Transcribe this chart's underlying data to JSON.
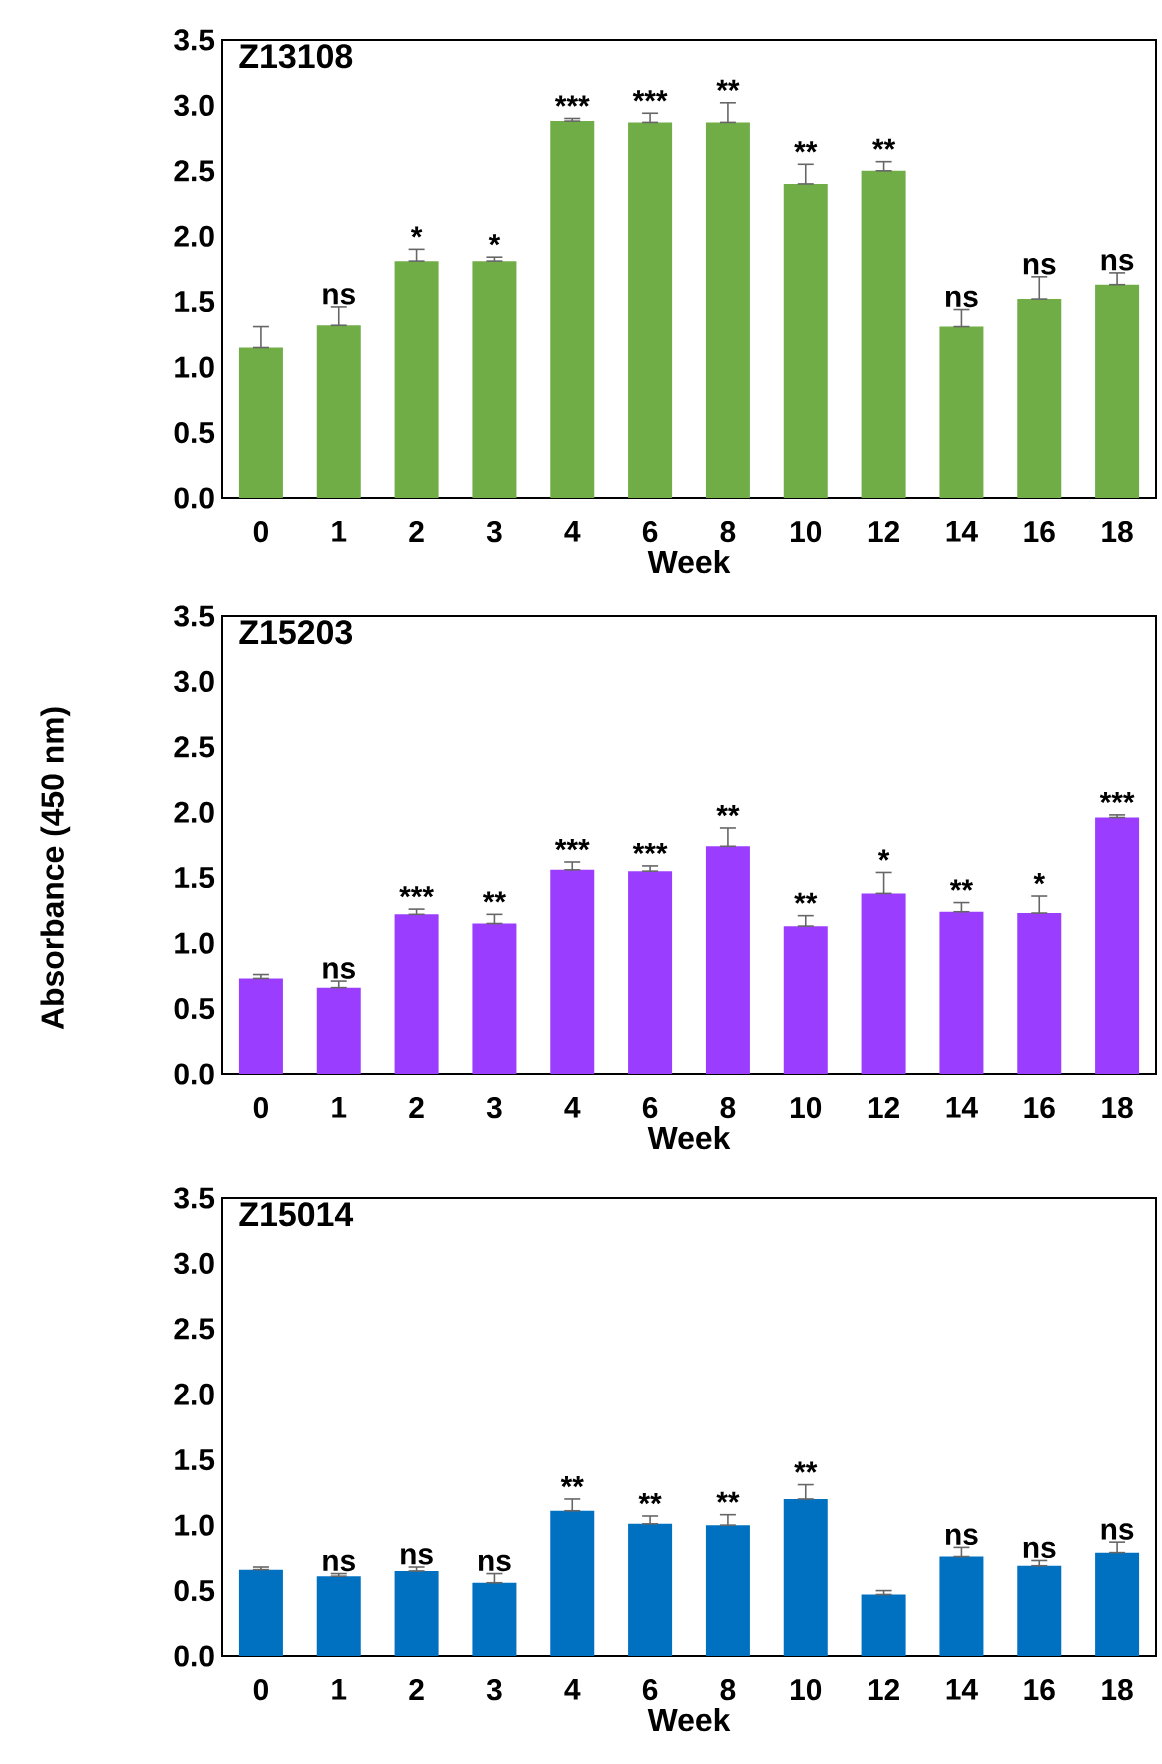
{
  "chart_data": [
    {
      "type": "bar",
      "title": "Z13108",
      "xlabel": "Week",
      "categories": [
        "0",
        "1",
        "2",
        "3",
        "4",
        "6",
        "8",
        "10",
        "12",
        "14",
        "16",
        "18"
      ],
      "color": "#70ad47",
      "values": [
        1.15,
        1.32,
        1.81,
        1.81,
        2.88,
        2.87,
        2.87,
        2.4,
        2.5,
        1.31,
        1.52,
        1.63
      ],
      "errors": [
        [
          1.15,
          1.31
        ],
        [
          1.32,
          1.46
        ],
        [
          1.81,
          1.9
        ],
        [
          1.81,
          1.84
        ],
        [
          2.88,
          2.9
        ],
        [
          2.87,
          2.94
        ],
        [
          2.87,
          3.02
        ],
        [
          2.4,
          2.55
        ],
        [
          2.5,
          2.57
        ],
        [
          1.31,
          1.44
        ],
        [
          1.52,
          1.69
        ],
        [
          1.63,
          1.72
        ]
      ],
      "ylim": [
        0,
        3.5
      ],
      "yticks": [
        {
          "value": 0,
          "label": "0.0"
        },
        0.5,
        {
          "value": 1,
          "label": "1.0"
        },
        1.5,
        {
          "value": 2,
          "label": "2.0"
        },
        2.5,
        {
          "value": 3,
          "label": "3.0"
        },
        3.5
      ],
      "annotations": [
        {
          "text": "ns",
          "x": "1",
          "y": 1.46
        },
        {
          "text": "*",
          "x": "2",
          "y": 1.9
        },
        {
          "text": "*",
          "x": "3",
          "y": 1.84
        },
        {
          "text": "***",
          "x": "4",
          "y": 2.9
        },
        {
          "text": "***",
          "x": "6",
          "y": 2.94
        },
        {
          "text": "**",
          "x": "8",
          "y": 3.02
        },
        {
          "text": "**",
          "x": "10",
          "y": 2.55
        },
        {
          "text": "**",
          "x": "12",
          "y": 2.57
        },
        {
          "text": "ns",
          "x": "14",
          "y": 1.44
        },
        {
          "text": "ns",
          "x": "16",
          "y": 1.69
        },
        {
          "text": "ns",
          "x": "18",
          "y": 1.72
        }
      ]
    },
    {
      "type": "bar",
      "title": "Z15203",
      "xlabel": "Week",
      "ylabel": "Absorbance (450 nm)",
      "categories": [
        "0",
        "1",
        "2",
        "3",
        "4",
        "6",
        "8",
        "10",
        "12",
        "14",
        "16",
        "18"
      ],
      "color": "#9b3dff",
      "values": [
        0.73,
        0.66,
        1.22,
        1.15,
        1.56,
        1.55,
        1.74,
        1.13,
        1.38,
        1.24,
        1.23,
        1.96
      ],
      "errors": [
        [
          0.73,
          0.76
        ],
        [
          0.66,
          0.71
        ],
        [
          1.22,
          1.26
        ],
        [
          1.15,
          1.22
        ],
        [
          1.56,
          1.62
        ],
        [
          1.55,
          1.59
        ],
        [
          1.74,
          1.88
        ],
        [
          1.13,
          1.21
        ],
        [
          1.38,
          1.54
        ],
        [
          1.24,
          1.31
        ],
        [
          1.23,
          1.36
        ],
        [
          1.96,
          1.98
        ]
      ],
      "ylim": [
        0,
        3.5
      ],
      "yticks": [
        {
          "value": 0,
          "label": "0.0"
        },
        0.5,
        {
          "value": 1,
          "label": "1.0"
        },
        1.5,
        {
          "value": 2,
          "label": "2.0"
        },
        2.5,
        {
          "value": 3,
          "label": "3.0"
        },
        3.5
      ],
      "annotations": [
        {
          "text": "ns",
          "x": "1",
          "y": 0.71
        },
        {
          "text": "***",
          "x": "2",
          "y": 1.26
        },
        {
          "text": "**",
          "x": "3",
          "y": 1.22
        },
        {
          "text": "***",
          "x": "4",
          "y": 1.62
        },
        {
          "text": "***",
          "x": "6",
          "y": 1.59
        },
        {
          "text": "**",
          "x": "8",
          "y": 1.88
        },
        {
          "text": "**",
          "x": "10",
          "y": 1.21
        },
        {
          "text": "*",
          "x": "12",
          "y": 1.54
        },
        {
          "text": "**",
          "x": "14",
          "y": 1.31
        },
        {
          "text": "*",
          "x": "16",
          "y": 1.36
        },
        {
          "text": "***",
          "x": "18",
          "y": 1.98
        }
      ]
    },
    {
      "type": "bar",
      "title": "Z15014",
      "xlabel": "Week",
      "categories": [
        "0",
        "1",
        "2",
        "3",
        "4",
        "6",
        "8",
        "10",
        "12",
        "14",
        "16",
        "18"
      ],
      "color": "#0070c0",
      "values": [
        0.66,
        0.61,
        0.65,
        0.56,
        1.11,
        1.01,
        1.0,
        1.2,
        0.47,
        0.76,
        0.69,
        0.79
      ],
      "errors": [
        [
          0.66,
          0.68
        ],
        [
          0.61,
          0.63
        ],
        [
          0.65,
          0.68
        ],
        [
          0.56,
          0.63
        ],
        [
          1.11,
          1.2
        ],
        [
          1.01,
          1.07
        ],
        [
          1.0,
          1.08
        ],
        [
          1.2,
          1.31
        ],
        [
          0.47,
          0.5
        ],
        [
          0.76,
          0.83
        ],
        [
          0.69,
          0.73
        ],
        [
          0.79,
          0.87
        ]
      ],
      "ylim": [
        0,
        3.5
      ],
      "yticks": [
        {
          "value": 0,
          "label": "0.0"
        },
        0.5,
        {
          "value": 1,
          "label": "1.0"
        },
        1.5,
        {
          "value": 2,
          "label": "2.0"
        },
        2.5,
        {
          "value": 3,
          "label": "3.0"
        },
        3.5
      ],
      "annotations": [
        {
          "text": "ns",
          "x": "1",
          "y": 0.63
        },
        {
          "text": "ns",
          "x": "2",
          "y": 0.68
        },
        {
          "text": "ns",
          "x": "3",
          "y": 0.63
        },
        {
          "text": "**",
          "x": "4",
          "y": 1.2
        },
        {
          "text": "**",
          "x": "6",
          "y": 1.07
        },
        {
          "text": "**",
          "x": "8",
          "y": 1.08
        },
        {
          "text": "**",
          "x": "10",
          "y": 1.31
        },
        {
          "text": "ns",
          "x": "14",
          "y": 0.83
        },
        {
          "text": "ns",
          "x": "16",
          "y": 0.73
        },
        {
          "text": "ns",
          "x": "18",
          "y": 0.87
        }
      ]
    }
  ]
}
